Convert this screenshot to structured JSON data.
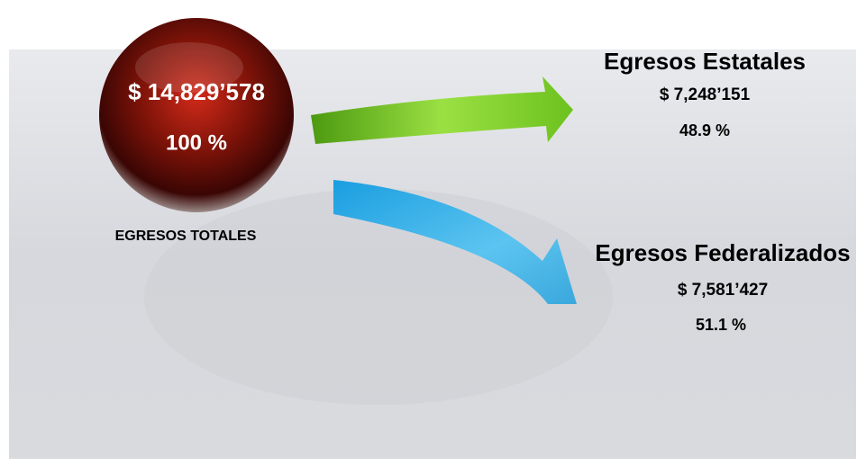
{
  "total": {
    "amount": "$ 14,829’578",
    "percent": "100 %",
    "label": "EGRESOS TOTALES"
  },
  "branches": [
    {
      "title": "Egresos Estatales",
      "amount": "$ 7,248’151",
      "percent": "48.9 %"
    },
    {
      "title": "Egresos Federalizados",
      "amount": "$ 7,581’427",
      "percent": "51.1 %"
    }
  ]
}
